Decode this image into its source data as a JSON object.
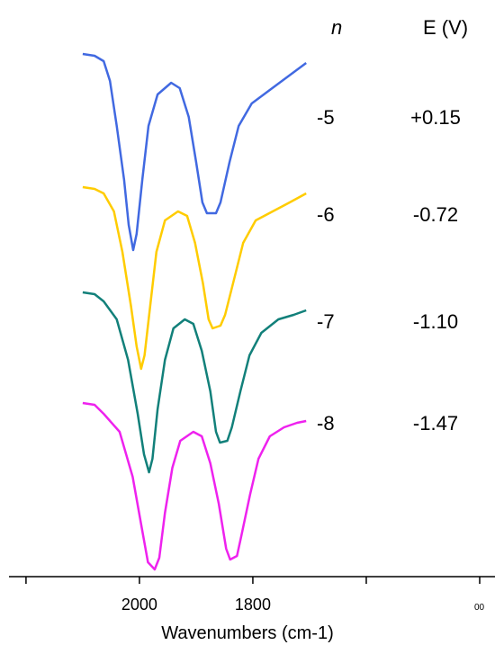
{
  "chart_data": {
    "type": "line",
    "xlabel": "Wavenumbers (cm-1)",
    "xlim": [
      2230,
      1373
    ],
    "ylim": [
      0,
      600
    ],
    "xticks": [
      {
        "value": 2200,
        "label": null
      },
      2000,
      1800,
      {
        "value": 1600,
        "label": null
      },
      {
        "value": 1400,
        "label": "00"
      }
    ],
    "legend_headers": [
      "n",
      "E (V)"
    ],
    "series": [
      {
        "name": "-5",
        "potential": "+0.15",
        "color": "#4169e1",
        "x": [
          2100,
          2079,
          2063,
          2052,
          2040,
          2027,
          2019,
          2011,
          2005,
          1995,
          1984,
          1968,
          1944,
          1929,
          1913,
          1900,
          1889,
          1881,
          1865,
          1857,
          1841,
          1825,
          1802,
          1770,
          1738,
          1706
        ],
        "values": [
          580,
          578,
          572,
          550,
          500,
          440,
          390,
          362,
          380,
          440,
          500,
          535,
          548,
          542,
          510,
          460,
          415,
          403,
          403,
          415,
          460,
          500,
          525,
          540,
          555,
          570
        ]
      },
      {
        "name": "-6",
        "potential": "-0.72",
        "color": "#ffcc00",
        "x": [
          2100,
          2079,
          2063,
          2045,
          2030,
          2015,
          2005,
          1997,
          1991,
          1981,
          1970,
          1955,
          1932,
          1916,
          1902,
          1888,
          1878,
          1871,
          1857,
          1849,
          1833,
          1817,
          1795,
          1765,
          1735,
          1706
        ],
        "values": [
          432,
          430,
          425,
          405,
          360,
          300,
          255,
          230,
          245,
          300,
          360,
          395,
          405,
          400,
          370,
          325,
          285,
          275,
          278,
          290,
          330,
          370,
          395,
          405,
          415,
          425
        ]
      },
      {
        "name": "-7",
        "potential": "-1.10",
        "color": "#12807a",
        "x": [
          2100,
          2079,
          2063,
          2040,
          2020,
          2003,
          1992,
          1983,
          1977,
          1968,
          1955,
          1940,
          1920,
          1905,
          1890,
          1875,
          1865,
          1858,
          1845,
          1837,
          1822,
          1806,
          1785,
          1755,
          1728,
          1706
        ],
        "values": [
          315,
          313,
          305,
          285,
          240,
          180,
          135,
          115,
          130,
          185,
          240,
          275,
          285,
          280,
          250,
          205,
          160,
          148,
          150,
          165,
          205,
          245,
          270,
          285,
          290,
          295
        ]
      },
      {
        "name": "-8",
        "potential": "-1.47",
        "color": "#ee22ee",
        "x": [
          2100,
          2079,
          2063,
          2035,
          2012,
          1995,
          1985,
          1973,
          1965,
          1955,
          1942,
          1928,
          1905,
          1890,
          1875,
          1860,
          1847,
          1840,
          1828,
          1820,
          1805,
          1790,
          1770,
          1745,
          1722,
          1706
        ],
        "values": [
          192,
          190,
          180,
          160,
          110,
          50,
          15,
          7,
          20,
          70,
          120,
          150,
          160,
          155,
          125,
          80,
          30,
          18,
          22,
          45,
          90,
          130,
          155,
          165,
          170,
          172
        ]
      }
    ]
  }
}
